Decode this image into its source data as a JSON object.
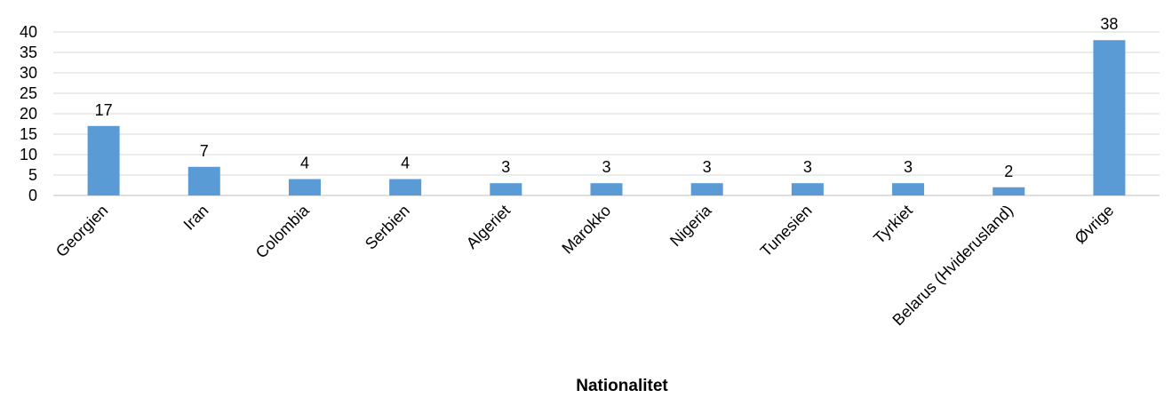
{
  "chart_data": {
    "type": "bar",
    "title": "",
    "xlabel": "Nationalitet",
    "ylabel": "",
    "categories": [
      "Georgien",
      "Iran",
      "Colombia",
      "Serbien",
      "Algeriet",
      "Marokko",
      "Nigeria",
      "Tunesien",
      "Tyrkiet",
      "Belarus (Hviderusland)",
      "Øvrige"
    ],
    "values": [
      17,
      7,
      4,
      4,
      3,
      3,
      3,
      3,
      3,
      2,
      38
    ],
    "ylim": [
      0,
      40
    ],
    "yticks": [
      "0",
      "5",
      "10",
      "15",
      "20",
      "25",
      "30",
      "35",
      "40"
    ],
    "grid": true,
    "legend": "none",
    "bar_color": "#5b9bd5",
    "data_labels": true
  }
}
